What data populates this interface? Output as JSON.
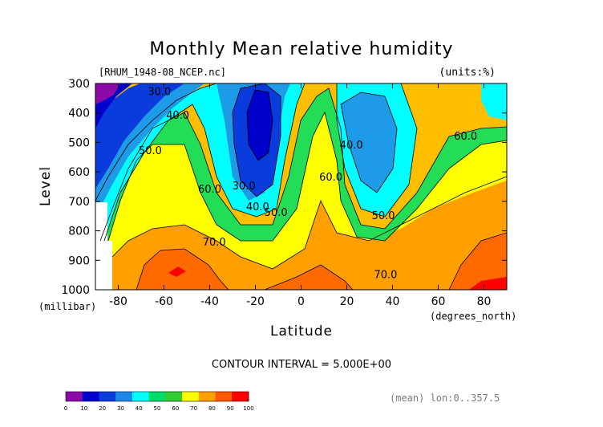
{
  "chart_data": {
    "type": "heatmap",
    "subtype": "filled-contour",
    "title": "Monthly Mean relative humidity",
    "file_label": "[RHUM_1948-08_NCEP.nc]",
    "units_label": "(units:%)",
    "xlabel": "Latitude",
    "x_units": "(degrees_north)",
    "ylabel": "Level",
    "y_units": "(millibar)",
    "xlim": [
      -90,
      90
    ],
    "ylim": [
      1000,
      300
    ],
    "x_ticks": [
      -80,
      -60,
      -40,
      -20,
      0,
      20,
      40,
      60,
      80
    ],
    "y_ticks": [
      300,
      400,
      500,
      600,
      700,
      800,
      900,
      1000
    ],
    "contour_interval_text": "CONTOUR INTERVAL = 5.000E+00",
    "contour_labels": [
      {
        "text": "30.0",
        "lat": -62,
        "lev": 340
      },
      {
        "text": "40.0",
        "lat": -54,
        "lev": 420
      },
      {
        "text": "50.0",
        "lat": -66,
        "lev": 540
      },
      {
        "text": "60.0",
        "lat": -40,
        "lev": 670
      },
      {
        "text": "70.0",
        "lat": -38,
        "lev": 850
      },
      {
        "text": "30.0",
        "lat": -25,
        "lev": 660
      },
      {
        "text": "40.0",
        "lat": -19,
        "lev": 730
      },
      {
        "text": "50.0",
        "lat": -11,
        "lev": 750
      },
      {
        "text": "60.0",
        "lat": 13,
        "lev": 630
      },
      {
        "text": "40.0",
        "lat": 22,
        "lev": 520
      },
      {
        "text": "50.0",
        "lat": 36,
        "lev": 760
      },
      {
        "text": "70.0",
        "lat": 37,
        "lev": 960
      },
      {
        "text": "60.0",
        "lat": 72,
        "lev": 490
      }
    ],
    "colorbar": {
      "levels": [
        0,
        10,
        20,
        30,
        40,
        50,
        60,
        70,
        80,
        90,
        100
      ],
      "colors": [
        "#8b0aa8",
        "#0000cd",
        "#0a3bdc",
        "#1e88e8",
        "#00ffff",
        "#00dd66",
        "#33cc33",
        "#ffff00",
        "#ff9f00",
        "#ff5a00",
        "#ff0000"
      ]
    },
    "footer_note": "(mean) lon:0..357.5"
  }
}
